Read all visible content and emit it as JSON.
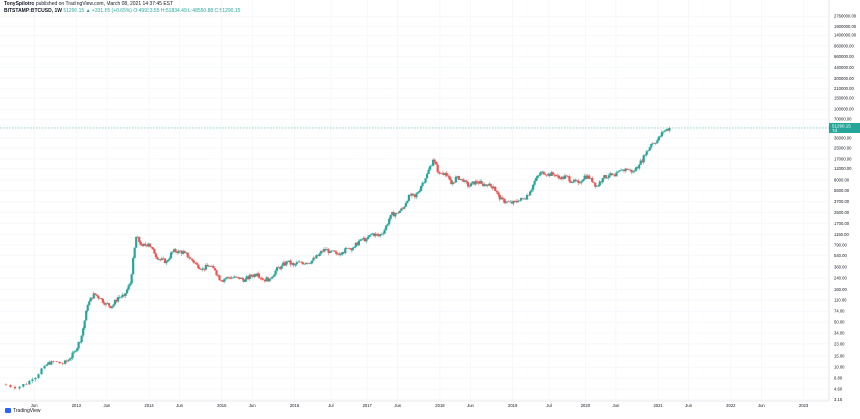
{
  "header": {
    "publish_line_author": "TonySpilotro",
    "publish_line_rest": " published on TradingView.com, March 08, 2021 14:37:45 EST",
    "symbol": "BITSTAMP:BTCUSD, 1W",
    "ohlc": "51290.15 ▲ +331.85 (+0.65%) O:49933.55 H:51834.49 L:48550.88 C:51290.15"
  },
  "footer": {
    "brand": "TradingView"
  },
  "colors": {
    "up": "#26a69a",
    "down": "#ef5350",
    "grid": "#f0f3fa",
    "axis": "#d1d4dc",
    "price_line": "#26a69a"
  },
  "chart_data": {
    "type": "candlestick",
    "y_scale": "log",
    "y_tick_labels": [
      "2760000.00",
      "1900000.00",
      "1400000.00",
      "960000.00",
      "660000.00",
      "440000.00",
      "300000.00",
      "210000.00",
      "150000.00",
      "100000.00",
      "70000.00",
      "36000.00",
      "25000.00",
      "17000.00",
      "12000.00",
      "8000.00",
      "5500.00",
      "3700.00",
      "2500.00",
      "1700.00",
      "1150.00",
      "790.00",
      "540.00",
      "360.00",
      "240.00",
      "160.00",
      "110.00",
      "74.00",
      "50.00",
      "34.00",
      "23.00",
      "15.00",
      "10.00",
      "6.80",
      "4.60",
      "3.15"
    ],
    "x_tick_labels": [
      "Jun",
      "2013",
      "Jun",
      "2014",
      "Jun",
      "2015",
      "Jun",
      "2016",
      "Jul",
      "2017",
      "Jun",
      "2018",
      "Jun",
      "2019",
      "Jul",
      "2020",
      "Jun",
      "2021",
      "Jun",
      "2022",
      "Jun",
      "2023"
    ],
    "last_price": "51290.15",
    "last_price_sub": "7d",
    "series": [
      {
        "date": "2012-01",
        "value": 5.4
      },
      {
        "date": "2012-04",
        "value": 5.0
      },
      {
        "date": "2012-06",
        "value": 6.5
      },
      {
        "date": "2012-08",
        "value": 10.5
      },
      {
        "date": "2012-09",
        "value": 12.4
      },
      {
        "date": "2012-11",
        "value": 11.3
      },
      {
        "date": "2012-12",
        "value": 13.4
      },
      {
        "date": "2013-01",
        "value": 18.0
      },
      {
        "date": "2013-02",
        "value": 31.0
      },
      {
        "date": "2013-03",
        "value": 92.0
      },
      {
        "date": "2013-04",
        "value": 140.0
      },
      {
        "date": "2013-05",
        "value": 118.0
      },
      {
        "date": "2013-06",
        "value": 98.0
      },
      {
        "date": "2013-07",
        "value": 87.0
      },
      {
        "date": "2013-08",
        "value": 122.0
      },
      {
        "date": "2013-09",
        "value": 128.0
      },
      {
        "date": "2013-10",
        "value": 198.0
      },
      {
        "date": "2013-11",
        "value": 1050.0
      },
      {
        "date": "2013-12",
        "value": 760.0
      },
      {
        "date": "2014-01",
        "value": 830.0
      },
      {
        "date": "2014-02",
        "value": 580.0
      },
      {
        "date": "2014-03",
        "value": 460.0
      },
      {
        "date": "2014-04",
        "value": 440.0
      },
      {
        "date": "2014-05",
        "value": 620.0
      },
      {
        "date": "2014-06",
        "value": 640.0
      },
      {
        "date": "2014-07",
        "value": 590.0
      },
      {
        "date": "2014-08",
        "value": 480.0
      },
      {
        "date": "2014-09",
        "value": 390.0
      },
      {
        "date": "2014-10",
        "value": 340.0
      },
      {
        "date": "2014-11",
        "value": 370.0
      },
      {
        "date": "2014-12",
        "value": 320.0
      },
      {
        "date": "2015-01",
        "value": 220.0
      },
      {
        "date": "2015-02",
        "value": 250.0
      },
      {
        "date": "2015-03",
        "value": 245.0
      },
      {
        "date": "2015-04",
        "value": 235.0
      },
      {
        "date": "2015-05",
        "value": 230.0
      },
      {
        "date": "2015-06",
        "value": 262.0
      },
      {
        "date": "2015-07",
        "value": 285.0
      },
      {
        "date": "2015-08",
        "value": 228.0
      },
      {
        "date": "2015-09",
        "value": 236.0
      },
      {
        "date": "2015-10",
        "value": 315.0
      },
      {
        "date": "2015-11",
        "value": 375.0
      },
      {
        "date": "2015-12",
        "value": 430.0
      },
      {
        "date": "2016-01",
        "value": 380.0
      },
      {
        "date": "2016-02",
        "value": 430.0
      },
      {
        "date": "2016-03",
        "value": 416.0
      },
      {
        "date": "2016-04",
        "value": 450.0
      },
      {
        "date": "2016-05",
        "value": 530.0
      },
      {
        "date": "2016-06",
        "value": 680.0
      },
      {
        "date": "2016-07",
        "value": 625.0
      },
      {
        "date": "2016-08",
        "value": 575.0
      },
      {
        "date": "2016-09",
        "value": 608.0
      },
      {
        "date": "2016-10",
        "value": 700.0
      },
      {
        "date": "2016-11",
        "value": 740.0
      },
      {
        "date": "2016-12",
        "value": 960.0
      },
      {
        "date": "2017-01",
        "value": 970.0
      },
      {
        "date": "2017-02",
        "value": 1190.0
      },
      {
        "date": "2017-03",
        "value": 1080.0
      },
      {
        "date": "2017-04",
        "value": 1350.0
      },
      {
        "date": "2017-05",
        "value": 2300.0
      },
      {
        "date": "2017-06",
        "value": 2480.0
      },
      {
        "date": "2017-07",
        "value": 2870.0
      },
      {
        "date": "2017-08",
        "value": 4700.0
      },
      {
        "date": "2017-09",
        "value": 4340.0
      },
      {
        "date": "2017-10",
        "value": 6450.0
      },
      {
        "date": "2017-11",
        "value": 9950.0
      },
      {
        "date": "2017-12",
        "value": 16500.0
      },
      {
        "date": "2018-01",
        "value": 10200.0
      },
      {
        "date": "2018-02",
        "value": 10300.0
      },
      {
        "date": "2018-03",
        "value": 6900.0
      },
      {
        "date": "2018-04",
        "value": 9200.0
      },
      {
        "date": "2018-05",
        "value": 7500.0
      },
      {
        "date": "2018-06",
        "value": 6400.0
      },
      {
        "date": "2018-07",
        "value": 7700.0
      },
      {
        "date": "2018-08",
        "value": 7000.0
      },
      {
        "date": "2018-09",
        "value": 6600.0
      },
      {
        "date": "2018-10",
        "value": 6300.0
      },
      {
        "date": "2018-11",
        "value": 4000.0
      },
      {
        "date": "2018-12",
        "value": 3700.0
      },
      {
        "date": "2019-01",
        "value": 3450.0
      },
      {
        "date": "2019-02",
        "value": 3800.0
      },
      {
        "date": "2019-03",
        "value": 4100.0
      },
      {
        "date": "2019-04",
        "value": 5300.0
      },
      {
        "date": "2019-05",
        "value": 8600.0
      },
      {
        "date": "2019-06",
        "value": 10800.0
      },
      {
        "date": "2019-07",
        "value": 10000.0
      },
      {
        "date": "2019-08",
        "value": 9600.0
      },
      {
        "date": "2019-09",
        "value": 8300.0
      },
      {
        "date": "2019-10",
        "value": 9200.0
      },
      {
        "date": "2019-11",
        "value": 7500.0
      },
      {
        "date": "2019-12",
        "value": 7200.0
      },
      {
        "date": "2020-01",
        "value": 9350.0
      },
      {
        "date": "2020-02",
        "value": 8600.0
      },
      {
        "date": "2020-03",
        "value": 6400.0
      },
      {
        "date": "2020-04",
        "value": 8600.0
      },
      {
        "date": "2020-05",
        "value": 9450.0
      },
      {
        "date": "2020-06",
        "value": 9130.0
      },
      {
        "date": "2020-07",
        "value": 11350.0
      },
      {
        "date": "2020-08",
        "value": 11650.0
      },
      {
        "date": "2020-09",
        "value": 10780.0
      },
      {
        "date": "2020-10",
        "value": 13800.0
      },
      {
        "date": "2020-11",
        "value": 19700.0
      },
      {
        "date": "2020-12",
        "value": 29000.0
      },
      {
        "date": "2021-01",
        "value": 33100.0
      },
      {
        "date": "2021-02",
        "value": 45200.0
      },
      {
        "date": "2021-03",
        "value": 51290.15
      }
    ]
  }
}
